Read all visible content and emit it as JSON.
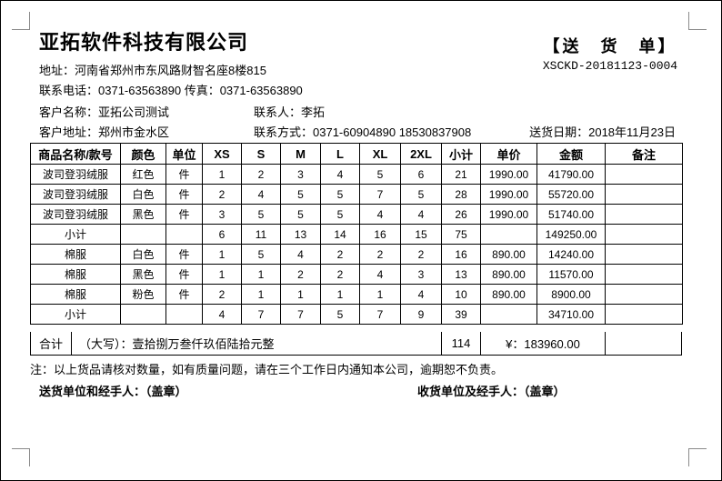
{
  "header": {
    "company_name": "亚拓软件科技有限公司",
    "doc_title": "【送　货　单】",
    "doc_number": "XSCKD-20181123-0004",
    "address": "地址：河南省郑州市东风路财智名座8楼815",
    "phones": "联系电话：0371-63563890  传真：0371-63563890"
  },
  "customer": {
    "name": "客户名称：亚拓公司测试",
    "contact": "联系人：李拓",
    "address": "客户地址：郑州市金水区",
    "phone": "联系方式：0371-60904890  18530837908",
    "delivery_date": "送货日期：2018年11月23日"
  },
  "table": {
    "headers": [
      "商品名称/款号",
      "颜色",
      "单位",
      "XS",
      "S",
      "M",
      "L",
      "XL",
      "2XL",
      "小计",
      "单价",
      "金额",
      "备注"
    ],
    "rows": [
      [
        "波司登羽绒服",
        "红色",
        "件",
        "1",
        "2",
        "3",
        "4",
        "5",
        "6",
        "21",
        "1990.00",
        "41790.00",
        ""
      ],
      [
        "波司登羽绒服",
        "白色",
        "件",
        "2",
        "4",
        "5",
        "5",
        "7",
        "5",
        "28",
        "1990.00",
        "55720.00",
        ""
      ],
      [
        "波司登羽绒服",
        "黑色",
        "件",
        "3",
        "5",
        "5",
        "5",
        "4",
        "4",
        "26",
        "1990.00",
        "51740.00",
        ""
      ],
      [
        "小计",
        "",
        "",
        "6",
        "11",
        "13",
        "14",
        "16",
        "15",
        "75",
        "",
        "149250.00",
        ""
      ],
      [
        "棉服",
        "白色",
        "件",
        "1",
        "5",
        "4",
        "2",
        "2",
        "2",
        "16",
        "890.00",
        "14240.00",
        ""
      ],
      [
        "棉服",
        "黑色",
        "件",
        "1",
        "1",
        "2",
        "2",
        "4",
        "3",
        "13",
        "890.00",
        "11570.00",
        ""
      ],
      [
        "棉服",
        "粉色",
        "件",
        "2",
        "1",
        "1",
        "1",
        "1",
        "4",
        "10",
        "890.00",
        "8900.00",
        ""
      ],
      [
        "小计",
        "",
        "",
        "4",
        "7",
        "7",
        "5",
        "7",
        "9",
        "39",
        "",
        "34710.00",
        ""
      ]
    ],
    "total_row": {
      "label": "合计",
      "amount_in_words": "（大写）：壹拾捌万叁仟玖佰陆拾元整",
      "total_quantity": "114",
      "total_amount": "¥：183960.00",
      "remark": ""
    }
  },
  "footer": {
    "note": "注：以上货品请核对数量，如有质量问题，请在三个工作日内通知本公司，逾期恕不负责。",
    "sender_signature": "送货单位和经手人：（盖章）",
    "receiver_signature": "收货单位及经手人：（盖章）"
  },
  "colors": {
    "border": "#000000",
    "crop_mark": "#8a8a8a",
    "background": "#ffffff"
  }
}
